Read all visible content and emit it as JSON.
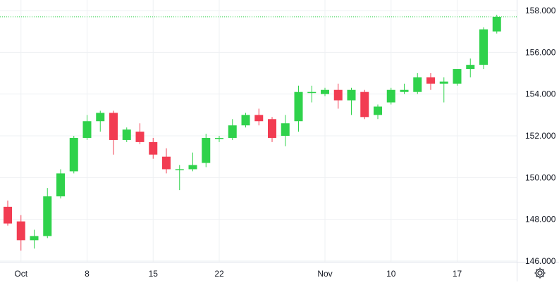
{
  "chart_data": {
    "type": "candlestick",
    "ylim": [
      146,
      158.3
    ],
    "grid": true,
    "colors": {
      "up": "#2fd24b",
      "down": "#f23c52",
      "grid": "#eef0f3",
      "axis_text": "#131722",
      "last_price_line": "#2fd24b"
    },
    "y_ticks": [
      "146.000",
      "148.000",
      "150.000",
      "152.000",
      "154.000",
      "156.000",
      "158.000"
    ],
    "x_ticks": [
      {
        "label": "Oct",
        "index": 1
      },
      {
        "label": "8",
        "index": 6
      },
      {
        "label": "15",
        "index": 11
      },
      {
        "label": "22",
        "index": 16
      },
      {
        "label": "Nov",
        "index": 24
      },
      {
        "label": "10",
        "index": 29
      },
      {
        "label": "17",
        "index": 34
      }
    ],
    "candles": [
      {
        "o": 148.6,
        "h": 148.9,
        "l": 147.7,
        "c": 147.8
      },
      {
        "o": 147.9,
        "h": 148.2,
        "l": 146.5,
        "c": 147.0
      },
      {
        "o": 147.0,
        "h": 147.5,
        "l": 146.6,
        "c": 147.2
      },
      {
        "o": 147.2,
        "h": 149.5,
        "l": 147.1,
        "c": 149.1
      },
      {
        "o": 149.1,
        "h": 150.4,
        "l": 149.0,
        "c": 150.2
      },
      {
        "o": 150.3,
        "h": 152.0,
        "l": 150.2,
        "c": 151.9
      },
      {
        "o": 151.9,
        "h": 153.0,
        "l": 151.8,
        "c": 152.7
      },
      {
        "o": 152.7,
        "h": 153.2,
        "l": 152.2,
        "c": 153.1
      },
      {
        "o": 153.1,
        "h": 153.2,
        "l": 151.1,
        "c": 151.8
      },
      {
        "o": 151.8,
        "h": 152.4,
        "l": 151.7,
        "c": 152.3
      },
      {
        "o": 152.2,
        "h": 152.6,
        "l": 151.6,
        "c": 151.7
      },
      {
        "o": 151.7,
        "h": 151.9,
        "l": 150.9,
        "c": 151.1
      },
      {
        "o": 151.0,
        "h": 151.4,
        "l": 150.2,
        "c": 150.4
      },
      {
        "o": 150.4,
        "h": 150.6,
        "l": 149.4,
        "c": 150.4
      },
      {
        "o": 150.4,
        "h": 151.2,
        "l": 150.3,
        "c": 150.6
      },
      {
        "o": 150.7,
        "h": 152.1,
        "l": 150.5,
        "c": 151.9
      },
      {
        "o": 151.9,
        "h": 152.0,
        "l": 151.7,
        "c": 151.9
      },
      {
        "o": 151.9,
        "h": 152.8,
        "l": 151.8,
        "c": 152.5
      },
      {
        "o": 152.5,
        "h": 153.1,
        "l": 152.4,
        "c": 153.0
      },
      {
        "o": 153.0,
        "h": 153.3,
        "l": 152.5,
        "c": 152.7
      },
      {
        "o": 152.8,
        "h": 152.9,
        "l": 151.7,
        "c": 151.9
      },
      {
        "o": 152.0,
        "h": 153.0,
        "l": 151.5,
        "c": 152.6
      },
      {
        "o": 152.7,
        "h": 154.4,
        "l": 152.2,
        "c": 154.1
      },
      {
        "o": 154.1,
        "h": 154.4,
        "l": 153.6,
        "c": 154.1
      },
      {
        "o": 154.0,
        "h": 154.3,
        "l": 153.9,
        "c": 154.2
      },
      {
        "o": 154.2,
        "h": 154.5,
        "l": 153.3,
        "c": 153.7
      },
      {
        "o": 153.7,
        "h": 154.3,
        "l": 153.0,
        "c": 154.2
      },
      {
        "o": 154.1,
        "h": 154.2,
        "l": 152.8,
        "c": 152.9
      },
      {
        "o": 153.0,
        "h": 153.5,
        "l": 152.8,
        "c": 153.4
      },
      {
        "o": 153.6,
        "h": 154.3,
        "l": 153.5,
        "c": 154.2
      },
      {
        "o": 154.1,
        "h": 154.5,
        "l": 154.0,
        "c": 154.2
      },
      {
        "o": 154.1,
        "h": 155.0,
        "l": 154.0,
        "c": 154.8
      },
      {
        "o": 154.8,
        "h": 155.0,
        "l": 154.2,
        "c": 154.5
      },
      {
        "o": 154.5,
        "h": 154.8,
        "l": 153.6,
        "c": 154.6
      },
      {
        "o": 154.5,
        "h": 155.2,
        "l": 154.4,
        "c": 155.2
      },
      {
        "o": 155.2,
        "h": 155.7,
        "l": 154.8,
        "c": 155.4
      },
      {
        "o": 155.4,
        "h": 157.2,
        "l": 155.2,
        "c": 157.1
      },
      {
        "o": 157.0,
        "h": 157.8,
        "l": 156.9,
        "c": 157.7
      }
    ]
  },
  "settings_icon": "gear-icon"
}
